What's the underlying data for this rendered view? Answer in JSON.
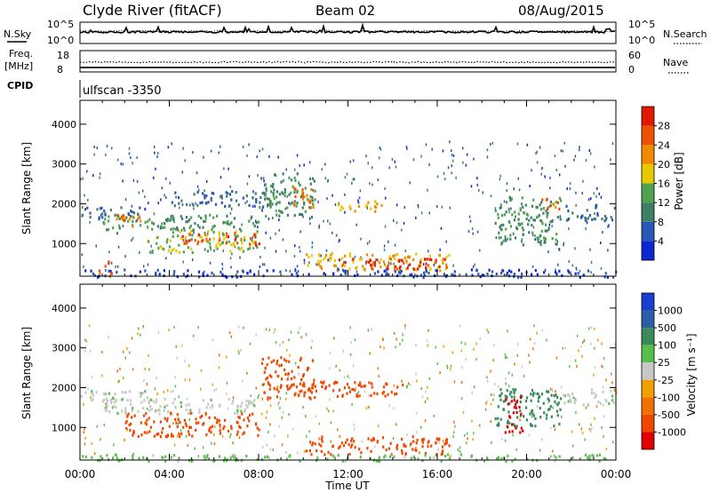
{
  "header": {
    "title": "Clyde River (fitACF)",
    "beam": "Beam 02",
    "date": "08/Aug/2015"
  },
  "noise_panel": {
    "left_label": "N.Sky",
    "right_label": "N.Search",
    "left_ticks": [
      "10^5",
      "10^0"
    ],
    "right_ticks": [
      "10^5",
      "10^0"
    ]
  },
  "freq_panel": {
    "left_label_1": "Freq.",
    "left_label_2": "[MHz]",
    "right_label": "Nave",
    "left_ticks": [
      "18",
      "8"
    ],
    "right_ticks": [
      "60",
      "0"
    ]
  },
  "cpid": {
    "label": "CPID",
    "value": "ulfscan -3350"
  },
  "colors": {
    "power_scale": [
      "#0a28d2",
      "#2a57b5",
      "#3f7f67",
      "#4fa34f",
      "#e8c800",
      "#f08a00",
      "#f05000",
      "#e01a00"
    ],
    "velocity_scale": [
      "#e00000",
      "#f04800",
      "#f07000",
      "#f0a000",
      "#c8c8c8",
      "#58c04a",
      "#3a8a5a",
      "#2a5fa8",
      "#1a3fd0"
    ]
  },
  "chart_data": [
    {
      "type": "heatmap",
      "name": "power",
      "xlabel": "",
      "ylabel": "Slant Range [km]",
      "xlim": [
        0,
        24
      ],
      "ylim": [
        180,
        4600
      ],
      "xticks": [
        "00:00",
        "04:00",
        "08:00",
        "12:00",
        "16:00",
        "20:00",
        "00:00"
      ],
      "yticks": [
        1000,
        2000,
        3000,
        4000
      ],
      "colorbar": {
        "label": "Power [dB]",
        "range": [
          0,
          32
        ],
        "ticks": [
          "4",
          "8",
          "12",
          "16",
          "20",
          "24",
          "28"
        ]
      },
      "bands": [
        {
          "t0": 0.0,
          "t1": 3.0,
          "r0": 1650,
          "r1": 1950,
          "value": 8
        },
        {
          "t0": 1.0,
          "t1": 8.0,
          "r0": 1350,
          "r1": 1750,
          "value": 12
        },
        {
          "t0": 1.5,
          "t1": 3.0,
          "r0": 1450,
          "r1": 1750,
          "value": 24
        },
        {
          "t0": 3.0,
          "t1": 8.0,
          "r0": 800,
          "r1": 1350,
          "value": 16
        },
        {
          "t0": 4.5,
          "t1": 8.0,
          "r0": 1000,
          "r1": 1300,
          "value": 26
        },
        {
          "t0": 4.0,
          "t1": 8.5,
          "r0": 1950,
          "r1": 2350,
          "value": 8
        },
        {
          "t0": 8.0,
          "t1": 10.5,
          "r0": 1700,
          "r1": 2800,
          "value": 12
        },
        {
          "t0": 9.5,
          "t1": 10.5,
          "r0": 1900,
          "r1": 2500,
          "value": 24
        },
        {
          "t0": 11.5,
          "t1": 13.5,
          "r0": 1800,
          "r1": 2100,
          "value": 20
        },
        {
          "t0": 10.0,
          "t1": 16.5,
          "r0": 350,
          "r1": 800,
          "value": 20
        },
        {
          "t0": 11.5,
          "t1": 16.5,
          "r0": 380,
          "r1": 650,
          "value": 28
        },
        {
          "t0": 0.0,
          "t1": 24.0,
          "r0": 180,
          "r1": 380,
          "value": 4
        },
        {
          "t0": 18.5,
          "t1": 21.5,
          "r0": 1000,
          "r1": 2200,
          "value": 12
        },
        {
          "t0": 20.5,
          "t1": 21.5,
          "r0": 1900,
          "r1": 2200,
          "value": 24
        },
        {
          "t0": 21.5,
          "t1": 24.0,
          "r0": 1600,
          "r1": 2000,
          "value": 8
        },
        {
          "t0": 0.8,
          "t1": 1.4,
          "r0": 200,
          "r1": 600,
          "value": 26
        }
      ]
    },
    {
      "type": "heatmap",
      "name": "velocity",
      "xlabel": "Time UT",
      "ylabel": "Slant Range [km]",
      "xlim": [
        0,
        24
      ],
      "ylim": [
        180,
        4600
      ],
      "xticks": [
        "00:00",
        "04:00",
        "08:00",
        "12:00",
        "16:00",
        "20:00",
        "00:00"
      ],
      "yticks": [
        1000,
        2000,
        3000,
        4000
      ],
      "colorbar": {
        "label": "Velocity [m s⁻¹]",
        "ticks": [
          "1000",
          "500",
          "100",
          "25",
          "-25",
          "-100",
          "-500",
          "-1000"
        ]
      },
      "bands": [
        {
          "t0": 0.0,
          "t1": 3.0,
          "r0": 1650,
          "r1": 1950,
          "value": 10
        },
        {
          "t0": 1.0,
          "t1": 8.0,
          "r0": 1350,
          "r1": 1750,
          "value": 10
        },
        {
          "t0": 2.0,
          "t1": 8.0,
          "r0": 800,
          "r1": 1400,
          "value": -250
        },
        {
          "t0": 8.0,
          "t1": 10.5,
          "r0": 1700,
          "r1": 2800,
          "value": -150
        },
        {
          "t0": 10.5,
          "t1": 14.5,
          "r0": 1800,
          "r1": 2200,
          "value": -300
        },
        {
          "t0": 10.0,
          "t1": 16.5,
          "r0": 350,
          "r1": 800,
          "value": -200
        },
        {
          "t0": 0.0,
          "t1": 24.0,
          "r0": 180,
          "r1": 350,
          "value": 50
        },
        {
          "t0": 18.5,
          "t1": 21.5,
          "r0": 1000,
          "r1": 2000,
          "value": 200
        },
        {
          "t0": 19.0,
          "t1": 19.8,
          "r0": 900,
          "r1": 1800,
          "value": -800
        },
        {
          "t0": 21.5,
          "t1": 24.0,
          "r0": 1600,
          "r1": 2000,
          "value": 0
        }
      ]
    }
  ]
}
